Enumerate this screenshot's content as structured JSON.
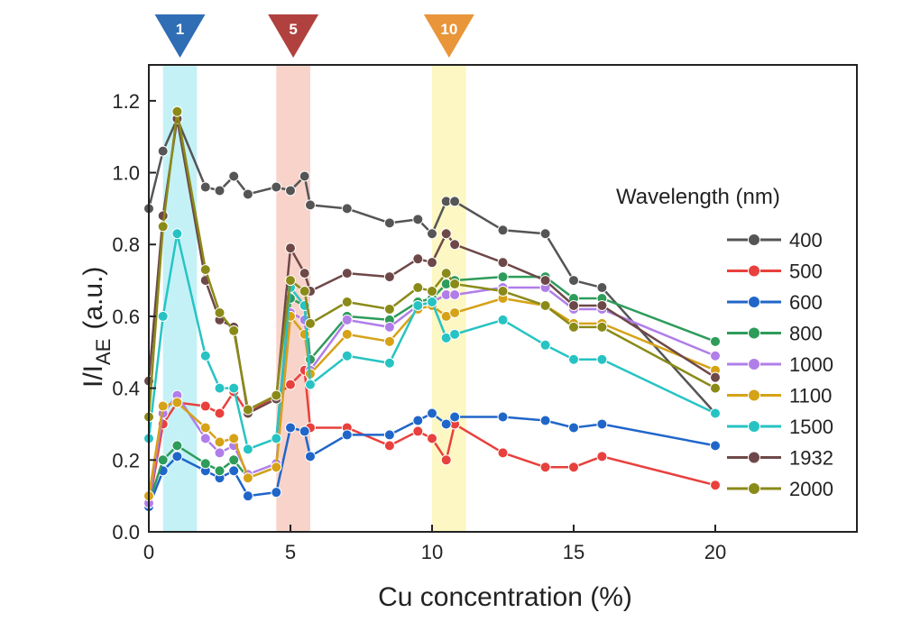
{
  "chart_data": {
    "type": "line",
    "xlabel": "Cu concentration (%)",
    "ylabel_main": "I/I",
    "ylabel_sub": "AE",
    "ylabel_unit": "(a.u.)",
    "xlim": [
      0,
      25
    ],
    "ylim": [
      0,
      1.3
    ],
    "xticks": [
      0,
      5,
      10,
      15,
      20
    ],
    "yticks": [
      0.0,
      0.2,
      0.4,
      0.6,
      0.8,
      1.0,
      1.2
    ],
    "ytick_labels": [
      "0.0",
      "0.2",
      "0.4",
      "0.6",
      "0.8",
      "1.0",
      "1.2"
    ],
    "legend_title": "Wavelength (nm)",
    "highlight_bands": [
      {
        "label": "1",
        "from": 0.5,
        "to": 1.7,
        "color": "#b8eef5",
        "marker_color": "#2f6db5"
      },
      {
        "label": "5",
        "from": 4.5,
        "to": 5.7,
        "color": "#f6cbc0",
        "marker_color": "#b0413e"
      },
      {
        "label": "10",
        "from": 10.0,
        "to": 11.2,
        "color": "#fbf6b8",
        "marker_color": "#e9953a"
      }
    ],
    "x": [
      0,
      0.5,
      1,
      2,
      2.5,
      3,
      3.5,
      4.5,
      5,
      5.5,
      5.7,
      7,
      8.5,
      9.5,
      10,
      10.5,
      10.8,
      12.5,
      14,
      15,
      16,
      20
    ],
    "series": [
      {
        "name": "400",
        "color": "#555555",
        "values": [
          0.9,
          1.06,
          1.15,
          0.96,
          0.95,
          0.99,
          0.94,
          0.96,
          0.95,
          0.99,
          0.91,
          0.9,
          0.86,
          0.87,
          0.83,
          0.92,
          0.92,
          0.84,
          0.83,
          0.7,
          0.68,
          0.33
        ]
      },
      {
        "name": "500",
        "color": "#e8403c",
        "values": [
          0.07,
          0.3,
          0.36,
          0.35,
          0.33,
          0.39,
          0.33,
          0.38,
          0.41,
          0.45,
          0.29,
          0.29,
          0.24,
          0.28,
          0.26,
          0.2,
          0.3,
          0.22,
          0.18,
          0.18,
          0.21,
          0.13
        ]
      },
      {
        "name": "600",
        "color": "#2066c9",
        "values": [
          0.07,
          0.17,
          0.21,
          0.17,
          0.15,
          0.17,
          0.1,
          0.11,
          0.29,
          0.28,
          0.21,
          0.27,
          0.27,
          0.31,
          0.33,
          0.3,
          0.32,
          0.32,
          0.31,
          0.29,
          0.3,
          0.24
        ]
      },
      {
        "name": "800",
        "color": "#2e9c5a",
        "values": [
          0.08,
          0.2,
          0.24,
          0.19,
          0.17,
          0.2,
          0.15,
          0.18,
          0.65,
          0.63,
          0.48,
          0.6,
          0.59,
          0.64,
          0.65,
          0.69,
          0.7,
          0.71,
          0.71,
          0.65,
          0.65,
          0.53
        ]
      },
      {
        "name": "1000",
        "color": "#b07ee8",
        "values": [
          0.08,
          0.33,
          0.38,
          0.26,
          0.22,
          0.24,
          0.16,
          0.19,
          0.61,
          0.59,
          0.45,
          0.59,
          0.57,
          0.63,
          0.64,
          0.66,
          0.66,
          0.68,
          0.68,
          0.62,
          0.62,
          0.49
        ]
      },
      {
        "name": "1100",
        "color": "#d6a217",
        "values": [
          0.1,
          0.35,
          0.36,
          0.29,
          0.25,
          0.26,
          0.15,
          0.18,
          0.6,
          0.55,
          0.44,
          0.55,
          0.53,
          0.62,
          0.63,
          0.6,
          0.61,
          0.65,
          0.63,
          0.58,
          0.58,
          0.45
        ]
      },
      {
        "name": "1500",
        "color": "#27c3c3",
        "values": [
          0.26,
          0.6,
          0.83,
          0.49,
          0.4,
          0.4,
          0.23,
          0.26,
          0.68,
          0.63,
          0.41,
          0.49,
          0.47,
          0.63,
          0.64,
          0.54,
          0.55,
          0.59,
          0.52,
          0.48,
          0.48,
          0.33
        ]
      },
      {
        "name": "1932",
        "color": "#6e4848",
        "values": [
          0.42,
          0.88,
          1.15,
          0.7,
          0.59,
          0.57,
          0.33,
          0.37,
          0.79,
          0.72,
          0.67,
          0.72,
          0.71,
          0.76,
          0.75,
          0.83,
          0.8,
          0.75,
          0.7,
          0.63,
          0.63,
          0.43
        ]
      },
      {
        "name": "2000",
        "color": "#8a8a18",
        "values": [
          0.32,
          0.85,
          1.17,
          0.73,
          0.61,
          0.56,
          0.34,
          0.38,
          0.7,
          0.67,
          0.58,
          0.64,
          0.62,
          0.68,
          0.67,
          0.72,
          0.69,
          0.67,
          0.63,
          0.57,
          0.57,
          0.4
        ]
      }
    ]
  }
}
